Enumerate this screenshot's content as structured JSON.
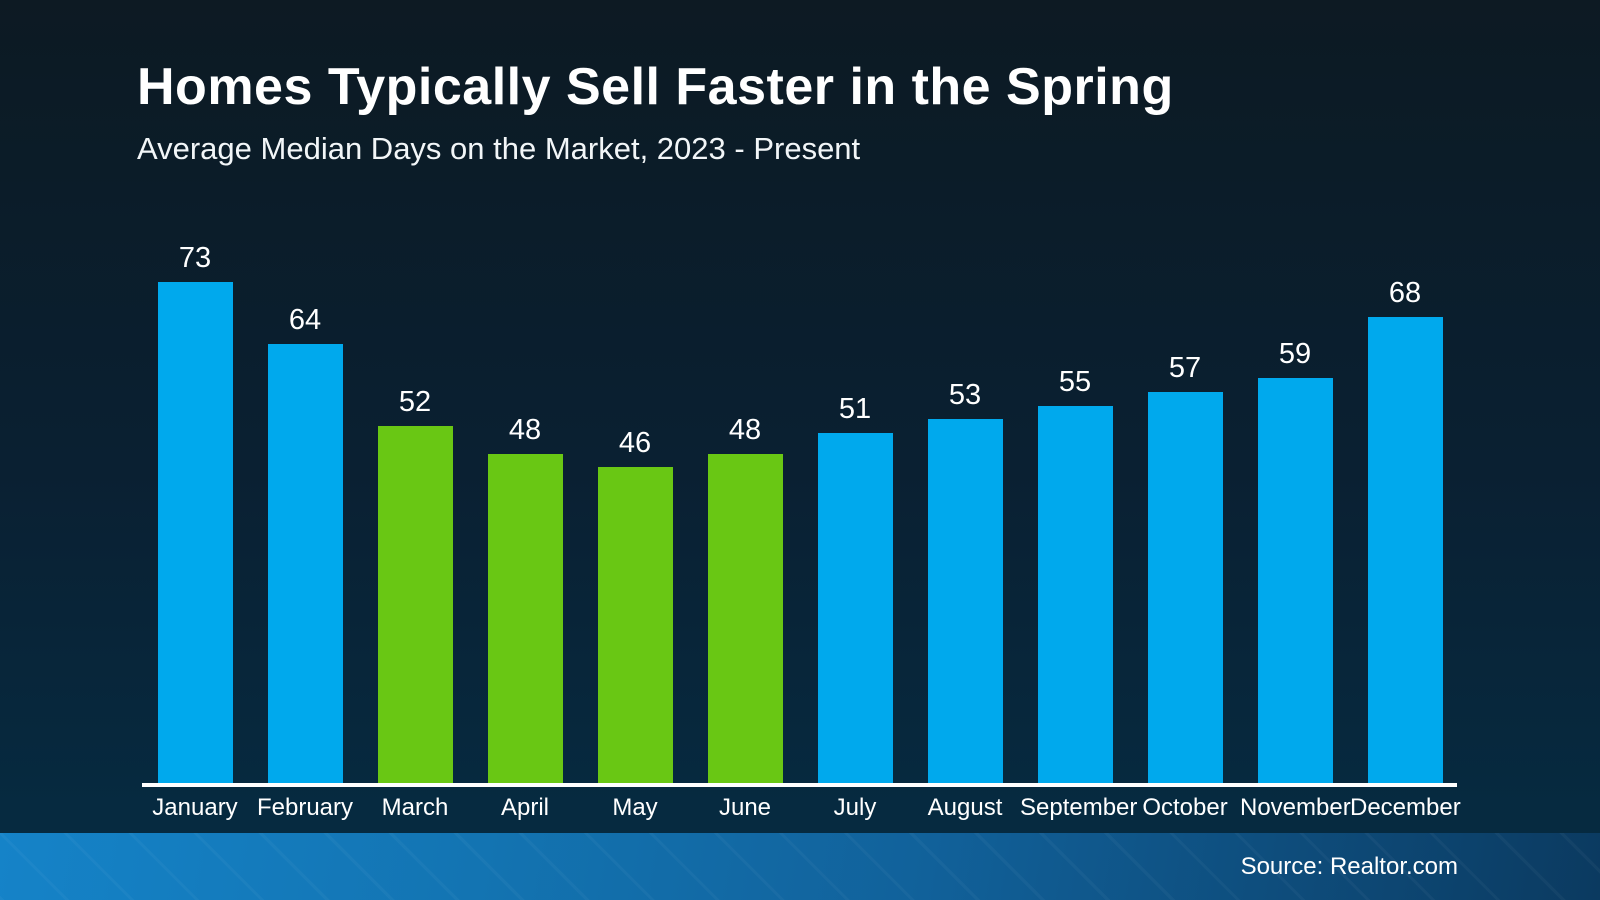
{
  "chart_data": {
    "type": "bar",
    "title": "Homes Typically Sell Faster in the Spring",
    "subtitle": "Average Median Days on the Market, 2023 - Present",
    "categories": [
      "January",
      "February",
      "March",
      "April",
      "May",
      "June",
      "July",
      "August",
      "September",
      "October",
      "November",
      "December"
    ],
    "values": [
      73,
      64,
      52,
      48,
      46,
      48,
      51,
      53,
      55,
      57,
      59,
      68
    ],
    "bar_colors": [
      "#00a9ed",
      "#00a9ed",
      "#69c714",
      "#69c714",
      "#69c714",
      "#69c714",
      "#00a9ed",
      "#00a9ed",
      "#00a9ed",
      "#00a9ed",
      "#00a9ed",
      "#00a9ed"
    ],
    "highlighted_months": [
      "March",
      "April",
      "May",
      "June"
    ],
    "value_labels_shown": true,
    "grid": false,
    "legend": false,
    "xlabel": "",
    "ylabel": ""
  },
  "colors": {
    "bar_blue": "#00a9ed",
    "bar_green": "#69c714",
    "background_top": "#0d1a23",
    "background_bottom": "#052940",
    "axis_line": "#ffffff",
    "footer_gradient_left": "#1583c8",
    "footer_gradient_right": "#0b3a60",
    "text": "#ffffff"
  },
  "footer": {
    "source": "Source: Realtor.com"
  }
}
